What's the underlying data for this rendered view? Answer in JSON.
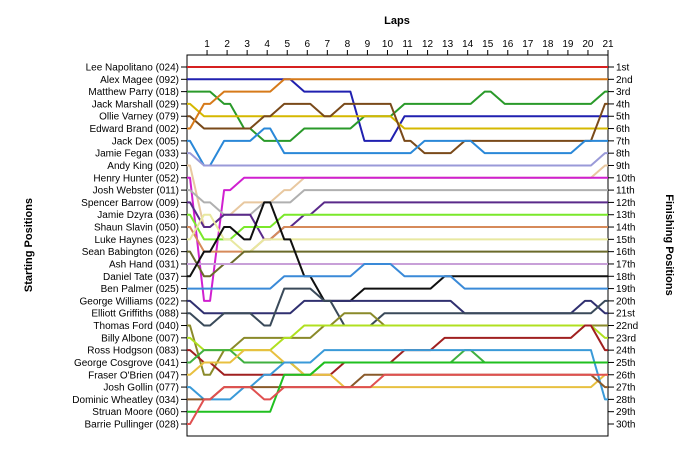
{
  "chart_data": {
    "type": "line",
    "title": "",
    "xlabel": "Laps",
    "ylabel_left": "Starting Positions",
    "ylabel_right": "Finishing Positions",
    "laps": [
      1,
      2,
      3,
      4,
      5,
      6,
      7,
      8,
      9,
      10,
      11,
      12,
      13,
      14,
      15,
      16,
      17,
      18,
      19,
      20,
      21
    ],
    "xlim": [
      0,
      21
    ],
    "ylim": [
      1,
      30
    ],
    "drivers": [
      "Lee Napolitano (024)",
      "Alex Magee (092)",
      "Matthew Parry (018)",
      "Jack Marshall (029)",
      "Ollie Varney (079)",
      "Edward Brand (002)",
      "Jack Dex (005)",
      "Jamie Fegan (033)",
      "Andy King (020)",
      "Henry Hunter (052)",
      "Josh Webster (011)",
      "Spencer Barrow (009)",
      "Jamie Dzyra (036)",
      "Shaun Slavin (050)",
      "Luke Haynes (023)",
      "Sean Babington (026)",
      "Ash Hand (031)",
      "Daniel Tate (037)",
      "Ben Palmer (025)",
      "George Williams (022)",
      "Elliott Griffiths (088)",
      "Thomas Ford (040)",
      "Billy Albone (007)",
      "Ross Hodgson (083)",
      "George Cosgrove (041)",
      "Fraser O'Brien (047)",
      "Josh Gollin (077)",
      "Dominic Wheatley (034)",
      "Struan Moore (060)",
      "Barrie Pullinger (028)"
    ],
    "finishing_labels": [
      "1st",
      "2nd",
      "3rd",
      "4th",
      "5th",
      "6th",
      "7th",
      "8th",
      "9th",
      "10th",
      "11th",
      "12th",
      "13th",
      "14th",
      "15th",
      "16th",
      "17th",
      "18th",
      "19th",
      "20th",
      "21st",
      "22nd",
      "23rd",
      "24th",
      "25th",
      "26th",
      "27th",
      "28th",
      "29th",
      "30th"
    ],
    "series": [
      {
        "name": "Lee Napolitano (024)",
        "color": "#d62020",
        "positions": [
          1,
          1,
          1,
          1,
          1,
          1,
          1,
          1,
          1,
          1,
          1,
          1,
          1,
          1,
          1,
          1,
          1,
          1,
          1,
          1,
          1,
          1
        ]
      },
      {
        "name": "Alex Magee (092)",
        "color": "#2020b0",
        "positions": [
          2,
          2,
          2,
          2,
          2,
          2,
          3,
          3,
          3,
          7,
          7,
          5,
          5,
          5,
          5,
          5,
          5,
          5,
          5,
          5,
          5,
          5
        ]
      },
      {
        "name": "Matthew Parry (018)",
        "color": "#2a9a2a",
        "positions": [
          3,
          3,
          4,
          6,
          7,
          7,
          6,
          6,
          6,
          5,
          5,
          4,
          4,
          4,
          4,
          3,
          4,
          4,
          4,
          4,
          4,
          3
        ]
      },
      {
        "name": "Jack Marshall (029)",
        "color": "#d5b800",
        "positions": [
          4,
          5,
          5,
          5,
          5,
          5,
          5,
          5,
          5,
          5,
          5,
          6,
          6,
          6,
          6,
          6,
          6,
          6,
          6,
          6,
          6,
          6
        ]
      },
      {
        "name": "Ollie Varney (079)",
        "color": "#7a4a1a",
        "positions": [
          5,
          6,
          6,
          6,
          5,
          4,
          4,
          5,
          4,
          4,
          4,
          7,
          8,
          8,
          7,
          7,
          7,
          7,
          7,
          7,
          7,
          4
        ]
      },
      {
        "name": "Edward Brand (002)",
        "color": "#d67a1a",
        "positions": [
          6,
          4,
          3,
          3,
          3,
          2,
          2,
          2,
          2,
          2,
          2,
          2,
          2,
          2,
          2,
          2,
          2,
          2,
          2,
          2,
          2,
          2
        ]
      },
      {
        "name": "Jack Dex (005)",
        "color": "#2a88d8",
        "positions": [
          7,
          9,
          7,
          7,
          6,
          8,
          8,
          8,
          8,
          8,
          8,
          8,
          7,
          7,
          7,
          8,
          8,
          8,
          8,
          8,
          7,
          7
        ]
      },
      {
        "name": "Jamie Fegan (033)",
        "color": "#9a9ad8",
        "positions": [
          8,
          9,
          9,
          9,
          9,
          9,
          9,
          9,
          9,
          9,
          9,
          9,
          9,
          9,
          9,
          9,
          9,
          9,
          9,
          9,
          9,
          8
        ]
      },
      {
        "name": "Andy King (020)",
        "color": "#e8c8a0",
        "positions": [
          9,
          14,
          13,
          12,
          12,
          11,
          10,
          10,
          10,
          10,
          10,
          10,
          10,
          10,
          10,
          10,
          10,
          10,
          10,
          10,
          10,
          9
        ]
      },
      {
        "name": "Henry Hunter (052)",
        "color": "#d020d0",
        "positions": [
          10,
          20,
          11,
          10,
          10,
          10,
          10,
          10,
          10,
          10,
          10,
          10,
          10,
          10,
          10,
          10,
          10,
          10,
          10,
          10,
          10,
          10
        ]
      },
      {
        "name": "Josh Webster (011)",
        "color": "#b0b0b0",
        "positions": [
          11,
          12,
          13,
          13,
          12,
          12,
          11,
          11,
          11,
          11,
          11,
          11,
          11,
          11,
          11,
          11,
          11,
          11,
          11,
          11,
          11,
          11
        ]
      },
      {
        "name": "Spencer Barrow (009)",
        "color": "#5a2a8a",
        "positions": [
          12,
          14,
          13,
          13,
          15,
          14,
          13,
          12,
          12,
          12,
          12,
          12,
          12,
          12,
          12,
          12,
          12,
          12,
          12,
          12,
          12,
          12
        ]
      },
      {
        "name": "Jamie Dzyra (036)",
        "color": "#7ae82a",
        "positions": [
          13,
          15,
          15,
          14,
          14,
          13,
          13,
          13,
          13,
          13,
          13,
          13,
          13,
          13,
          13,
          13,
          13,
          13,
          13,
          13,
          13,
          13
        ]
      },
      {
        "name": "Shaun Slavin (050)",
        "color": "#d68a5a",
        "positions": [
          14,
          16,
          16,
          16,
          15,
          14,
          14,
          14,
          14,
          14,
          14,
          14,
          14,
          14,
          14,
          14,
          14,
          14,
          14,
          14,
          14,
          14
        ]
      },
      {
        "name": "Luke Haynes (023)",
        "color": "#e8e8a0",
        "positions": [
          15,
          13,
          15,
          16,
          15,
          15,
          15,
          15,
          15,
          15,
          15,
          15,
          15,
          15,
          15,
          15,
          15,
          15,
          15,
          15,
          15,
          15
        ]
      },
      {
        "name": "Sean Babington (026)",
        "color": "#6a6a2a",
        "positions": [
          16,
          18,
          17,
          16,
          16,
          16,
          16,
          16,
          16,
          16,
          16,
          16,
          16,
          16,
          16,
          16,
          16,
          16,
          16,
          16,
          16,
          16
        ]
      },
      {
        "name": "Ash Hand (031)",
        "color": "#c8a0d8",
        "positions": [
          17,
          17,
          17,
          17,
          17,
          17,
          17,
          17,
          17,
          17,
          17,
          17,
          17,
          17,
          17,
          17,
          17,
          17,
          17,
          17,
          17,
          17
        ]
      },
      {
        "name": "Daniel Tate (037)",
        "color": "#101010",
        "positions": [
          18,
          16,
          14,
          15,
          12,
          15,
          18,
          20,
          20,
          19,
          19,
          19,
          19,
          18,
          18,
          18,
          18,
          18,
          18,
          18,
          18,
          18
        ]
      },
      {
        "name": "Ben Palmer (025)",
        "color": "#3a8ad8",
        "positions": [
          19,
          19,
          19,
          19,
          19,
          18,
          18,
          18,
          18,
          17,
          17,
          18,
          18,
          18,
          19,
          19,
          19,
          19,
          19,
          19,
          19,
          19
        ]
      },
      {
        "name": "George Williams (022)",
        "color": "#303070",
        "positions": [
          20,
          21,
          21,
          21,
          21,
          21,
          20,
          20,
          20,
          20,
          20,
          20,
          20,
          20,
          21,
          21,
          21,
          21,
          21,
          21,
          20,
          21
        ]
      },
      {
        "name": "Elliott Griffiths (088)",
        "color": "#3a4a5a",
        "positions": [
          21,
          22,
          21,
          21,
          22,
          19,
          19,
          20,
          22,
          22,
          21,
          21,
          21,
          21,
          21,
          21,
          21,
          21,
          21,
          21,
          21,
          20
        ]
      },
      {
        "name": "Thomas Ford (040)",
        "color": "#8a8a2a",
        "positions": [
          22,
          26,
          24,
          23,
          23,
          23,
          23,
          22,
          21,
          21,
          22,
          22,
          22,
          22,
          22,
          22,
          22,
          22,
          22,
          22,
          22,
          22
        ]
      },
      {
        "name": "Billy Albone (007)",
        "color": "#b0e020",
        "positions": [
          23,
          24,
          24,
          24,
          24,
          23,
          22,
          22,
          22,
          22,
          22,
          22,
          22,
          22,
          22,
          22,
          22,
          22,
          22,
          22,
          22,
          23
        ]
      },
      {
        "name": "Ross Hodgson (083)",
        "color": "#a02020",
        "positions": [
          24,
          25,
          26,
          26,
          26,
          26,
          26,
          26,
          25,
          25,
          25,
          24,
          24,
          23,
          23,
          23,
          23,
          23,
          23,
          23,
          22,
          24
        ]
      },
      {
        "name": "George Cosgrove (041)",
        "color": "#40b040",
        "positions": [
          25,
          24,
          24,
          25,
          25,
          25,
          26,
          25,
          25,
          25,
          25,
          25,
          25,
          25,
          24,
          25,
          25,
          25,
          25,
          25,
          25,
          25
        ]
      },
      {
        "name": "Fraser O'Brien (047)",
        "color": "#e8c040",
        "positions": [
          26,
          25,
          25,
          24,
          24,
          25,
          26,
          26,
          27,
          27,
          27,
          27,
          27,
          27,
          27,
          27,
          27,
          27,
          27,
          27,
          27,
          26
        ]
      },
      {
        "name": "Josh Gollin (077)",
        "color": "#3a9ad8",
        "positions": [
          27,
          28,
          28,
          27,
          26,
          25,
          25,
          24,
          24,
          24,
          24,
          24,
          24,
          24,
          24,
          24,
          24,
          24,
          24,
          24,
          24,
          28
        ]
      },
      {
        "name": "Dominic Wheatley (034)",
        "color": "#8a5a2a",
        "positions": [
          28,
          28,
          27,
          27,
          27,
          27,
          27,
          27,
          27,
          26,
          26,
          26,
          26,
          26,
          26,
          26,
          26,
          26,
          26,
          26,
          26,
          27
        ]
      },
      {
        "name": "Struan Moore (060)",
        "color": "#20c020",
        "positions": [
          29,
          29,
          29,
          29,
          29,
          26,
          26,
          25,
          25,
          25,
          25,
          25,
          25,
          25,
          25,
          25,
          25,
          25,
          25,
          25,
          25,
          25
        ]
      },
      {
        "name": "Barrie Pullinger (028)",
        "color": "#e05050",
        "positions": [
          30,
          28,
          27,
          27,
          28,
          27,
          27,
          27,
          27,
          27,
          26,
          26,
          26,
          26,
          26,
          26,
          26,
          26,
          26,
          26,
          26,
          26
        ]
      }
    ]
  }
}
